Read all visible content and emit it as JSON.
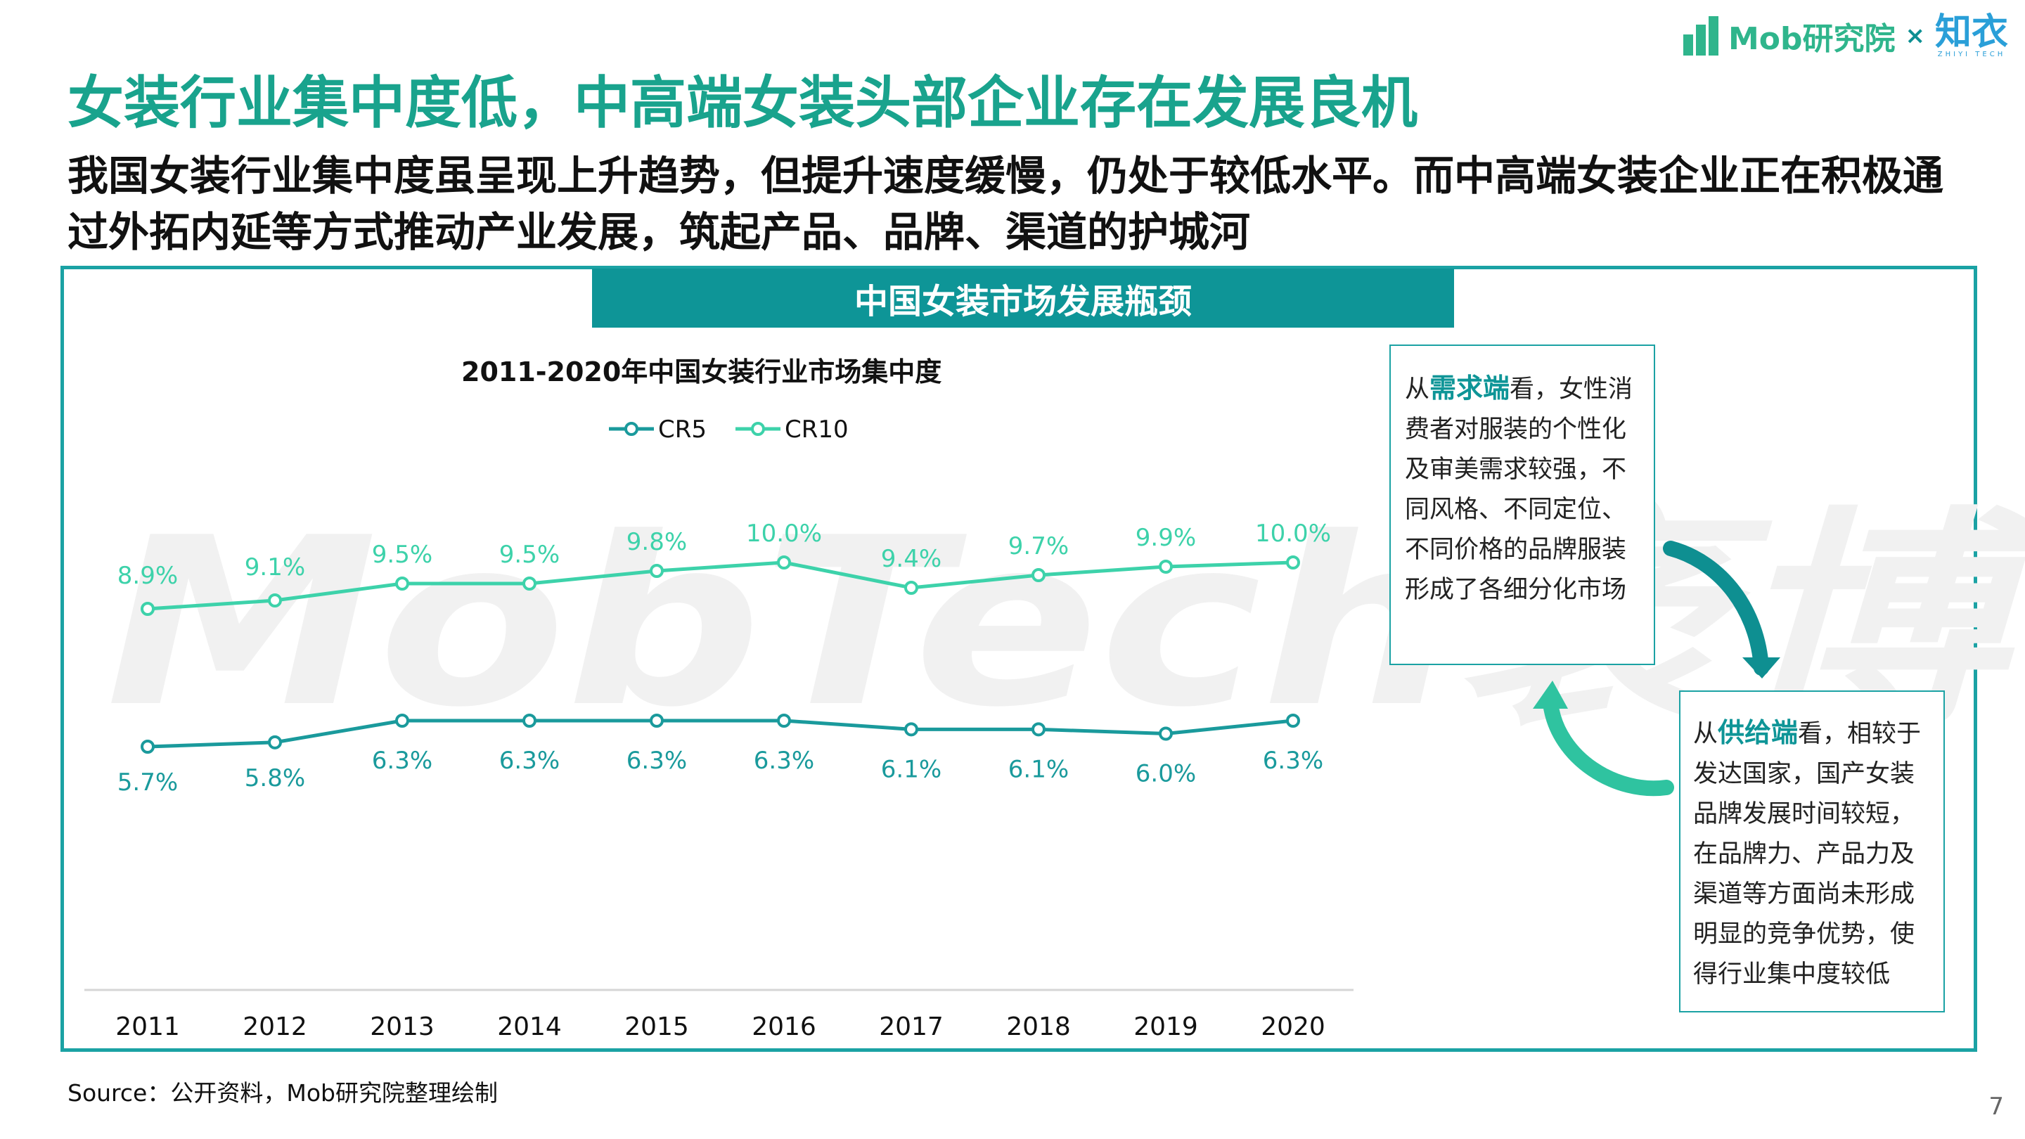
{
  "header": {
    "brand": "Mob研究院",
    "cross": "×",
    "partner": "知衣",
    "partner_sub": "ZHIYI TECH"
  },
  "title": "女装行业集中度低，中高端女装头部企业存在发展良机",
  "subtitle": "我国女装行业集中度虽呈现上升趋势，但提升速度缓慢，仍处于较低水平。而中高端女装企业正在积极通过外拓内延等方式推动产业发展，筑起产品、品牌、渠道的护城河",
  "panel": {
    "header": "中国女装市场发展瓶颈"
  },
  "watermark": "MobTech袤博",
  "chart_data": {
    "type": "line",
    "title": "2011-2020年中国女装行业市场集中度",
    "categories": [
      "2011",
      "2012",
      "2013",
      "2014",
      "2015",
      "2016",
      "2017",
      "2018",
      "2019",
      "2020"
    ],
    "series": [
      {
        "name": "CR5",
        "color": "#1a9a9c",
        "values": [
          5.7,
          5.8,
          6.3,
          6.3,
          6.3,
          6.3,
          6.1,
          6.1,
          6.0,
          6.3
        ],
        "labels": [
          "5.7%",
          "5.8%",
          "6.3%",
          "6.3%",
          "6.3%",
          "6.3%",
          "6.1%",
          "6.1%",
          "6.0%",
          "6.3%"
        ]
      },
      {
        "name": "CR10",
        "color": "#3dd2aa",
        "values": [
          8.9,
          9.1,
          9.5,
          9.5,
          9.8,
          10.0,
          9.4,
          9.7,
          9.9,
          10.0
        ],
        "labels": [
          "8.9%",
          "9.1%",
          "9.5%",
          "9.5%",
          "9.8%",
          "10.0%",
          "9.4%",
          "9.7%",
          "9.9%",
          "10.0%"
        ]
      }
    ],
    "xlabel": "",
    "ylabel": "",
    "legend": "top-center"
  },
  "notes": {
    "demand": {
      "prefix": "从",
      "highlight": "需求端",
      "text": "看，女性消费者对服装的个性化及审美需求较强，不同风格、不同定位、不同价格的品牌服装形成了各细分化市场"
    },
    "supply": {
      "prefix": "从",
      "highlight": "供给端",
      "text": "看，相较于发达国家，国产女装品牌发展时间较短，在品牌力、产品力及渠道等方面尚未形成明显的竞争优势，使得行业集中度较低"
    }
  },
  "source": "Source：公开资料，Mob研究院整理绘制",
  "page_number": "7"
}
